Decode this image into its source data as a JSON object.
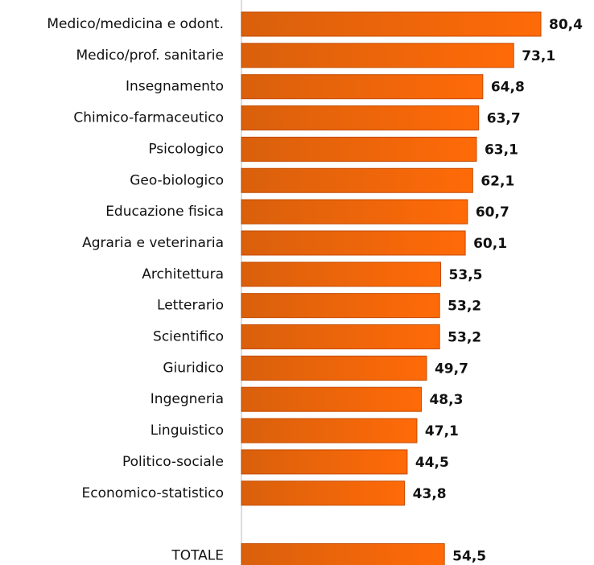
{
  "chart_data": {
    "type": "barh",
    "categories": [
      "Medico/medicina e odont.",
      "Medico/prof. sanitarie",
      "Insegnamento",
      "Chimico-farmaceutico",
      "Psicologico",
      "Geo-biologico",
      "Educazione fisica",
      "Agraria e veterinaria",
      "Architettura",
      "Letterario",
      "Scientifico",
      "Giuridico",
      "Ingegneria",
      "Linguistico",
      "Politico-sociale",
      "Economico-statistico",
      null,
      "TOTALE"
    ],
    "values": [
      80.4,
      73.1,
      64.8,
      63.7,
      63.1,
      62.1,
      60.7,
      60.1,
      53.5,
      53.2,
      53.2,
      49.7,
      48.3,
      47.1,
      44.5,
      43.8,
      null,
      54.5
    ],
    "value_labels": [
      "80,4",
      "73,1",
      "64,8",
      "63,7",
      "63,1",
      "62,1",
      "60,7",
      "60,1",
      "53,5",
      "53,2",
      "53,2",
      "49,7",
      "48,3",
      "47,1",
      "44,5",
      "43,8",
      null,
      "54,5"
    ],
    "color": "#f06a10"
  }
}
